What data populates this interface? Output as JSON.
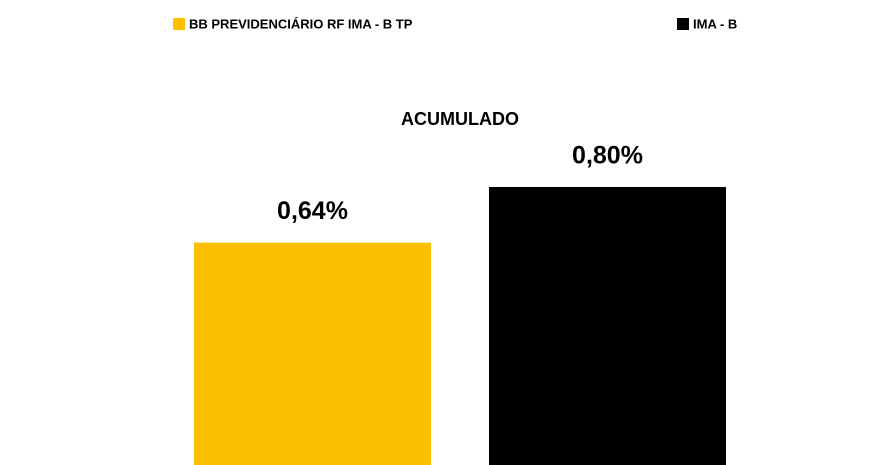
{
  "chart_data": {
    "type": "bar",
    "categories": [
      "ACUMULADO"
    ],
    "series": [
      {
        "name": "BB PREVIDENCIÁRIO RF IMA - B TP",
        "color": "#fcc000",
        "values": [
          0.64
        ],
        "value_labels": [
          "0,64%"
        ]
      },
      {
        "name": "IMA - B",
        "color": "#000000",
        "values": [
          0.8
        ],
        "value_labels": [
          "0,80%"
        ]
      }
    ]
  }
}
